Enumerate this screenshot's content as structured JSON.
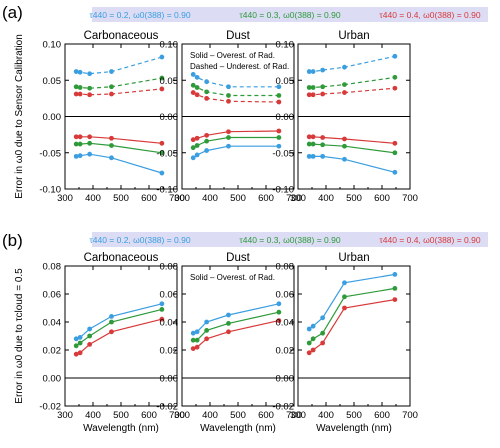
{
  "figure": {
    "legend_a": [
      {
        "text": "τ440 = 0.2, ω0(388) = 0.90",
        "color": "#3a9ee0"
      },
      {
        "text": "τ440 = 0.3, ω0(388) = 0.90",
        "color": "#2e9a3a"
      },
      {
        "text": "τ440 = 0.4, ω0(388) = 0.90",
        "color": "#d83a3a"
      }
    ],
    "legend_b": [
      {
        "text": "τ440 = 0.2, ω0(388) = 0.90",
        "color": "#3a9ee0"
      },
      {
        "text": "τ440 = 0.3, ω0(388) = 0.90",
        "color": "#2e9a3a"
      },
      {
        "text": "τ440 = 0.4, ω0(388) = 0.90",
        "color": "#d83a3a"
      }
    ]
  },
  "chart_data": [
    {
      "panel": "(a)",
      "type": "line",
      "title": "Carbonaceous",
      "xlabel": "",
      "ylabel": "Error in ω0 due to Sensor Calibration",
      "xlim": [
        300,
        700
      ],
      "ylim": [
        -0.1,
        0.1
      ],
      "xticks": [
        300,
        400,
        500,
        600,
        700
      ],
      "yticks": [
        -0.1,
        -0.05,
        0.0,
        0.05,
        0.1
      ],
      "ytick_labels": [
        "-0.10",
        "-0.05",
        "0.00",
        "0.05",
        "0.10"
      ],
      "x": [
        340,
        354,
        388,
        466,
        646
      ],
      "zero_line": true,
      "series": [
        {
          "color": "#3a9ee0",
          "style": "dashed",
          "values": [
            0.062,
            0.061,
            0.059,
            0.062,
            0.082
          ]
        },
        {
          "color": "#2e9a3a",
          "style": "dashed",
          "values": [
            0.041,
            0.04,
            0.039,
            0.041,
            0.053
          ]
        },
        {
          "color": "#d83a3a",
          "style": "dashed",
          "values": [
            0.031,
            0.031,
            0.03,
            0.031,
            0.038
          ]
        },
        {
          "color": "#d83a3a",
          "style": "solid",
          "values": [
            -0.028,
            -0.028,
            -0.028,
            -0.03,
            -0.037
          ]
        },
        {
          "color": "#2e9a3a",
          "style": "solid",
          "values": [
            -0.038,
            -0.038,
            -0.037,
            -0.04,
            -0.05
          ]
        },
        {
          "color": "#3a9ee0",
          "style": "solid",
          "values": [
            -0.055,
            -0.054,
            -0.052,
            -0.057,
            -0.078
          ]
        }
      ]
    },
    {
      "panel": "(a)",
      "type": "line",
      "title": "Dust",
      "xlabel": "",
      "ylabel": "",
      "notes": [
        "Solid – Overest. of Rad.",
        "Dashed – Underest. of Rad."
      ],
      "xlim": [
        300,
        700
      ],
      "ylim": [
        -0.1,
        0.1
      ],
      "xticks": [
        300,
        400,
        500,
        600,
        700
      ],
      "yticks": [
        -0.1,
        -0.05,
        0.0,
        0.05,
        0.1
      ],
      "ytick_labels": [
        "-0.10",
        "-0.05",
        "0.00",
        "0.05",
        "0.10"
      ],
      "x": [
        340,
        354,
        388,
        466,
        646
      ],
      "zero_line": true,
      "series": [
        {
          "color": "#3a9ee0",
          "style": "dashed",
          "values": [
            0.058,
            0.054,
            0.048,
            0.041,
            0.041
          ]
        },
        {
          "color": "#2e9a3a",
          "style": "dashed",
          "values": [
            0.043,
            0.04,
            0.034,
            0.029,
            0.029
          ]
        },
        {
          "color": "#d83a3a",
          "style": "dashed",
          "values": [
            0.033,
            0.03,
            0.025,
            0.021,
            0.02
          ]
        },
        {
          "color": "#d83a3a",
          "style": "solid",
          "values": [
            -0.032,
            -0.03,
            -0.026,
            -0.021,
            -0.02
          ]
        },
        {
          "color": "#2e9a3a",
          "style": "solid",
          "values": [
            -0.043,
            -0.04,
            -0.034,
            -0.029,
            -0.029
          ]
        },
        {
          "color": "#3a9ee0",
          "style": "solid",
          "values": [
            -0.057,
            -0.053,
            -0.047,
            -0.041,
            -0.041
          ]
        }
      ]
    },
    {
      "panel": "(a)",
      "type": "line",
      "title": "Urban",
      "xlabel": "",
      "ylabel": "",
      "xlim": [
        300,
        700
      ],
      "ylim": [
        -0.1,
        0.1
      ],
      "xticks": [
        300,
        400,
        500,
        600,
        700
      ],
      "yticks": [
        -0.1,
        -0.05,
        0.0,
        0.05,
        0.1
      ],
      "ytick_labels": [
        "-0.10",
        "-0.05",
        "0.00",
        "0.05",
        "0.10"
      ],
      "x": [
        340,
        354,
        388,
        466,
        646
      ],
      "zero_line": true,
      "series": [
        {
          "color": "#3a9ee0",
          "style": "dashed",
          "values": [
            0.062,
            0.062,
            0.064,
            0.068,
            0.083
          ]
        },
        {
          "color": "#2e9a3a",
          "style": "dashed",
          "values": [
            0.04,
            0.04,
            0.041,
            0.044,
            0.054
          ]
        },
        {
          "color": "#d83a3a",
          "style": "dashed",
          "values": [
            0.03,
            0.03,
            0.031,
            0.033,
            0.039
          ]
        },
        {
          "color": "#d83a3a",
          "style": "solid",
          "values": [
            -0.028,
            -0.028,
            -0.029,
            -0.031,
            -0.037
          ]
        },
        {
          "color": "#2e9a3a",
          "style": "solid",
          "values": [
            -0.038,
            -0.038,
            -0.039,
            -0.041,
            -0.05
          ]
        },
        {
          "color": "#3a9ee0",
          "style": "solid",
          "values": [
            -0.055,
            -0.055,
            -0.055,
            -0.059,
            -0.077
          ]
        }
      ]
    },
    {
      "panel": "(b)",
      "type": "line",
      "title": "Carbonaceous",
      "xlabel": "Wavelength (nm)",
      "ylabel": "Error in ω0 due to τcloud = 0.5",
      "xlim": [
        300,
        700
      ],
      "ylim": [
        -0.02,
        0.08
      ],
      "xticks": [
        300,
        400,
        500,
        600,
        700
      ],
      "yticks": [
        -0.02,
        0.0,
        0.02,
        0.04,
        0.06,
        0.08
      ],
      "ytick_labels": [
        "-0.02",
        "0.00",
        "0.02",
        "0.04",
        "0.06",
        "0.08"
      ],
      "x": [
        340,
        354,
        388,
        466,
        646
      ],
      "zero_line": true,
      "series": [
        {
          "color": "#3a9ee0",
          "style": "solid",
          "values": [
            0.028,
            0.029,
            0.035,
            0.044,
            0.053
          ]
        },
        {
          "color": "#2e9a3a",
          "style": "solid",
          "values": [
            0.023,
            0.025,
            0.03,
            0.04,
            0.049
          ]
        },
        {
          "color": "#d83a3a",
          "style": "solid",
          "values": [
            0.017,
            0.018,
            0.024,
            0.033,
            0.042
          ]
        }
      ]
    },
    {
      "panel": "(b)",
      "type": "line",
      "title": "Dust",
      "xlabel": "Wavelength (nm)",
      "ylabel": "",
      "notes": [
        "Solid – Overest. of Rad."
      ],
      "xlim": [
        300,
        700
      ],
      "ylim": [
        -0.02,
        0.08
      ],
      "xticks": [
        300,
        400,
        500,
        600,
        700
      ],
      "yticks": [
        -0.02,
        0.0,
        0.02,
        0.04,
        0.06,
        0.08
      ],
      "ytick_labels": [
        "-0.02",
        "0.00",
        "0.02",
        "0.04",
        "0.06",
        "0.08"
      ],
      "x": [
        340,
        354,
        388,
        466,
        646
      ],
      "zero_line": true,
      "series": [
        {
          "color": "#3a9ee0",
          "style": "solid",
          "values": [
            0.032,
            0.033,
            0.04,
            0.045,
            0.053
          ]
        },
        {
          "color": "#2e9a3a",
          "style": "solid",
          "values": [
            0.027,
            0.027,
            0.034,
            0.039,
            0.047
          ]
        },
        {
          "color": "#d83a3a",
          "style": "solid",
          "values": [
            0.021,
            0.022,
            0.028,
            0.033,
            0.041
          ]
        }
      ]
    },
    {
      "panel": "(b)",
      "type": "line",
      "title": "Urban",
      "xlabel": "Wavelength (nm)",
      "ylabel": "",
      "xlim": [
        300,
        700
      ],
      "ylim": [
        -0.02,
        0.08
      ],
      "xticks": [
        300,
        400,
        500,
        600,
        700
      ],
      "yticks": [
        -0.02,
        0.0,
        0.02,
        0.04,
        0.06,
        0.08
      ],
      "ytick_labels": [
        "-0.02",
        "0.00",
        "0.02",
        "0.04",
        "0.06",
        "0.08"
      ],
      "x": [
        340,
        354,
        388,
        466,
        646
      ],
      "zero_line": true,
      "series": [
        {
          "color": "#3a9ee0",
          "style": "solid",
          "values": [
            0.035,
            0.037,
            0.043,
            0.068,
            0.074
          ]
        },
        {
          "color": "#2e9a3a",
          "style": "solid",
          "values": [
            0.025,
            0.028,
            0.032,
            0.058,
            0.064
          ]
        },
        {
          "color": "#d83a3a",
          "style": "solid",
          "values": [
            0.018,
            0.02,
            0.025,
            0.05,
            0.056
          ]
        }
      ]
    }
  ]
}
